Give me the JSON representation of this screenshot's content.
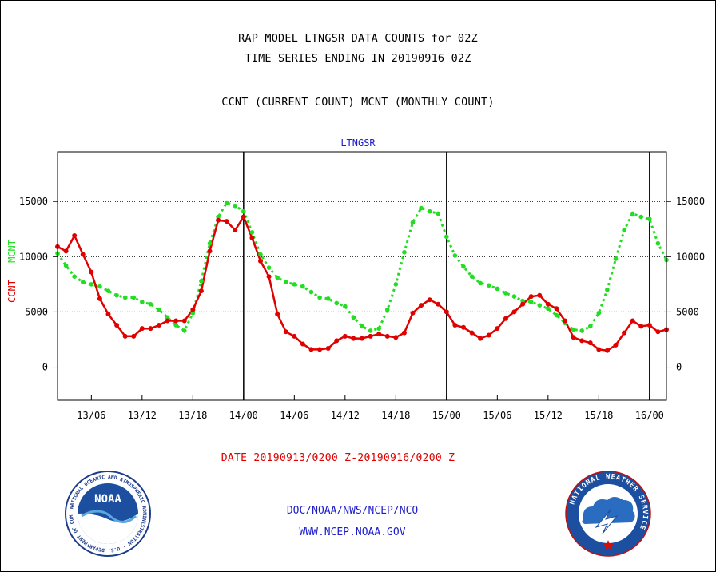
{
  "title_line1": "RAP MODEL LTNGSR DATA COUNTS for 02Z",
  "title_line2": "TIME SERIES ENDING IN 20190916 02Z",
  "title_line3": "CCNT (CURRENT COUNT) MCNT (MONTHLY COUNT)",
  "date_range": "DATE 20190913/0200 Z-20190916/0200 Z",
  "credit_line1": "DOC/NOAA/NWS/NCEP/NCO",
  "credit_line2": "WWW.NCEP.NOAA.GOV",
  "logos": {
    "noaa_text": "NOAA",
    "noaa_ring": "NATIONAL OCEANIC AND ATMOSPHERIC ADMINISTRATION · U.S. DEPARTMENT OF COMMERCE ·",
    "nws_ring": "NATIONAL WEATHER SERVICE"
  },
  "colors": {
    "ccnt": "#e00000",
    "mcnt": "#22dd22",
    "label_blue": "#1d1dcc"
  },
  "chart_data": {
    "type": "line",
    "title": "LTNGSR",
    "ylabel_left": [
      "CCNT",
      "MCNT"
    ],
    "x_tick_labels": [
      "13/06",
      "13/12",
      "13/18",
      "14/00",
      "14/06",
      "14/12",
      "14/18",
      "15/00",
      "15/06",
      "15/12",
      "15/18",
      "16/00"
    ],
    "x_tick_hours": [
      4,
      10,
      16,
      22,
      28,
      34,
      40,
      46,
      52,
      58,
      64,
      70
    ],
    "day_boundary_hours": [
      22,
      46,
      70
    ],
    "x_range_hours": [
      0,
      72
    ],
    "y_ticks": [
      0,
      5000,
      10000,
      15000
    ],
    "ylim": [
      -3000,
      19500
    ],
    "grid": "horizontal dotted",
    "series": [
      {
        "name": "CCNT",
        "color": "#e00000",
        "values": [
          10900,
          10500,
          11900,
          10200,
          8600,
          6200,
          4800,
          3800,
          2800,
          2800,
          3500,
          3500,
          3800,
          4200,
          4200,
          4200,
          5200,
          6900,
          10500,
          13300,
          13200,
          12400,
          13600,
          11700,
          9600,
          8200,
          4800,
          3200,
          2800,
          2100,
          1600,
          1600,
          1700,
          2400,
          2800,
          2600,
          2600,
          2800,
          3000,
          2800,
          2700,
          3100,
          4900,
          5600,
          6100,
          5700,
          5000,
          3800,
          3600,
          3100,
          2600,
          2900,
          3500,
          4400,
          5000,
          5700,
          6400,
          6500,
          5700,
          5300,
          4200,
          2700,
          2400,
          2200,
          1600,
          1500,
          2000,
          3100,
          4200,
          3700,
          3800,
          3200,
          3400
        ]
      },
      {
        "name": "MCNT",
        "color": "#22dd22",
        "values": [
          10300,
          9200,
          8200,
          7700,
          7500,
          7300,
          6900,
          6500,
          6300,
          6300,
          5900,
          5700,
          5200,
          4500,
          3800,
          3300,
          4900,
          7800,
          11200,
          13600,
          14900,
          14600,
          14100,
          12200,
          10200,
          9000,
          8100,
          7700,
          7500,
          7300,
          6800,
          6300,
          6200,
          5800,
          5500,
          4500,
          3700,
          3300,
          3500,
          5200,
          7500,
          10400,
          13100,
          14400,
          14100,
          13900,
          11800,
          10100,
          9100,
          8200,
          7600,
          7400,
          7100,
          6700,
          6400,
          6000,
          5900,
          5600,
          5300,
          4700,
          4000,
          3400,
          3300,
          3700,
          4900,
          7000,
          9800,
          12400,
          13900,
          13600,
          13400,
          11200,
          9700
        ]
      }
    ]
  }
}
